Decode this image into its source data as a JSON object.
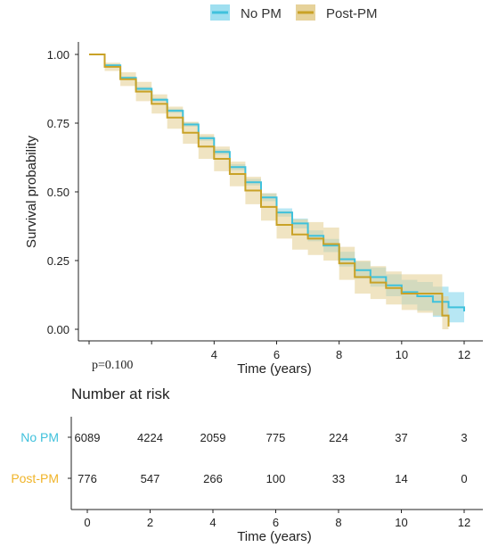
{
  "chart_data": {
    "type": "line",
    "subtype": "kaplan-meier survival curve with confidence bands and risk table",
    "legend": {
      "placement": "top-right",
      "entries": [
        "No PM",
        "Post-PM"
      ]
    },
    "xlabel": "Time (years)",
    "ylabel": "Survival probability",
    "xlim": [
      0,
      12
    ],
    "ylim": [
      0,
      1
    ],
    "x_ticks": [
      "4",
      "6",
      "8",
      "10",
      "12"
    ],
    "y_ticks": [
      "0.00",
      "0.25",
      "0.50",
      "0.75",
      "1.00"
    ],
    "annotation": "p=0.100",
    "grid": false,
    "series": [
      {
        "name": "No PM",
        "color": "#3fc1dc",
        "band_color": "#9fdff0",
        "x": [
          0,
          0.5,
          1,
          1.5,
          2,
          2.5,
          3,
          3.5,
          4,
          4.5,
          5,
          5.5,
          6,
          6.5,
          7,
          7.5,
          8,
          8.5,
          9,
          9.5,
          10,
          10.5,
          11,
          11.5,
          12
        ],
        "y": [
          1.0,
          0.96,
          0.915,
          0.875,
          0.835,
          0.795,
          0.745,
          0.695,
          0.645,
          0.59,
          0.535,
          0.48,
          0.425,
          0.385,
          0.34,
          0.305,
          0.255,
          0.215,
          0.19,
          0.16,
          0.135,
          0.12,
          0.1,
          0.08,
          0.065
        ],
        "lower": [
          1.0,
          0.955,
          0.91,
          0.868,
          0.828,
          0.787,
          0.737,
          0.686,
          0.635,
          0.579,
          0.523,
          0.466,
          0.41,
          0.367,
          0.32,
          0.281,
          0.228,
          0.184,
          0.155,
          0.12,
          0.09,
          0.068,
          0.045,
          0.025,
          0.02
        ],
        "upper": [
          1.0,
          0.965,
          0.92,
          0.882,
          0.842,
          0.803,
          0.753,
          0.704,
          0.655,
          0.601,
          0.547,
          0.494,
          0.44,
          0.403,
          0.36,
          0.329,
          0.282,
          0.246,
          0.225,
          0.2,
          0.18,
          0.172,
          0.155,
          0.135,
          0.12
        ]
      },
      {
        "name": "Post-PM",
        "color": "#c9a227",
        "band_color": "#e6d29a",
        "x": [
          0,
          0.5,
          1,
          1.5,
          2,
          2.5,
          3,
          3.5,
          4,
          4.5,
          5,
          5.5,
          6,
          6.5,
          7,
          7.5,
          8,
          8.5,
          9,
          9.5,
          10,
          10.5,
          11,
          11.3,
          11.5
        ],
        "y": [
          1.0,
          0.955,
          0.91,
          0.865,
          0.82,
          0.77,
          0.715,
          0.665,
          0.62,
          0.565,
          0.505,
          0.445,
          0.38,
          0.345,
          0.33,
          0.31,
          0.24,
          0.19,
          0.17,
          0.15,
          0.13,
          0.13,
          0.13,
          0.05,
          0.01
        ],
        "lower": [
          1.0,
          0.94,
          0.885,
          0.83,
          0.785,
          0.73,
          0.675,
          0.62,
          0.575,
          0.52,
          0.455,
          0.395,
          0.33,
          0.29,
          0.27,
          0.25,
          0.18,
          0.13,
          0.11,
          0.09,
          0.07,
          0.06,
          0.05,
          0.0,
          0.0
        ],
        "upper": [
          1.0,
          0.97,
          0.935,
          0.9,
          0.855,
          0.81,
          0.755,
          0.71,
          0.665,
          0.61,
          0.555,
          0.495,
          0.43,
          0.4,
          0.39,
          0.37,
          0.3,
          0.25,
          0.23,
          0.21,
          0.2,
          0.2,
          0.2,
          0.12,
          0.1
        ]
      }
    ],
    "risk_table": {
      "title": "Number at risk",
      "xlabel": "Time (years)",
      "x_ticks": [
        "0",
        "2",
        "4",
        "6",
        "8",
        "10",
        "12"
      ],
      "rows": [
        {
          "name": "No PM",
          "color": "#3fc1dc",
          "counts": [
            "6089",
            "4224",
            "2059",
            "775",
            "224",
            "37",
            "3"
          ]
        },
        {
          "name": "Post-PM",
          "color": "#f0b429",
          "counts": [
            "776",
            "547",
            "266",
            "100",
            "33",
            "14",
            "0"
          ]
        }
      ]
    }
  }
}
